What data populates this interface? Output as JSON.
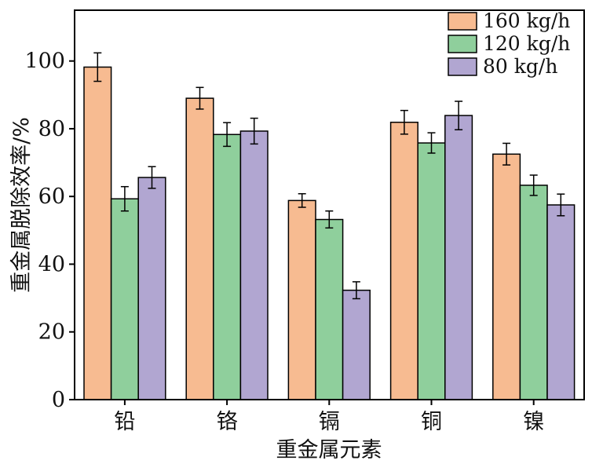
{
  "chart_data": {
    "type": "bar",
    "categories": [
      "铅",
      "铬",
      "镉",
      "铜",
      "镍"
    ],
    "series": [
      {
        "name": "160 kg/h",
        "color": "#F7BB91",
        "values": [
          98.2,
          89.0,
          58.8,
          81.9,
          72.5
        ],
        "errors": [
          4.2,
          3.2,
          2.0,
          3.5,
          3.2
        ]
      },
      {
        "name": "120 kg/h",
        "color": "#8FCF9C",
        "values": [
          59.3,
          78.3,
          53.2,
          75.8,
          63.3
        ],
        "errors": [
          3.6,
          3.5,
          2.5,
          3.0,
          3.0
        ]
      },
      {
        "name": "80 kg/h",
        "color": "#B1A6D1",
        "values": [
          65.6,
          79.3,
          32.3,
          83.9,
          57.5
        ],
        "errors": [
          3.2,
          3.8,
          2.5,
          4.2,
          3.2
        ]
      }
    ],
    "xlabel": "重金属元素",
    "ylabel": "重金属脱除效率/%",
    "ylim": [
      0,
      115
    ],
    "yticks": [
      0,
      20,
      40,
      60,
      80,
      100
    ],
    "legend_position": "top-right",
    "grid": false
  }
}
